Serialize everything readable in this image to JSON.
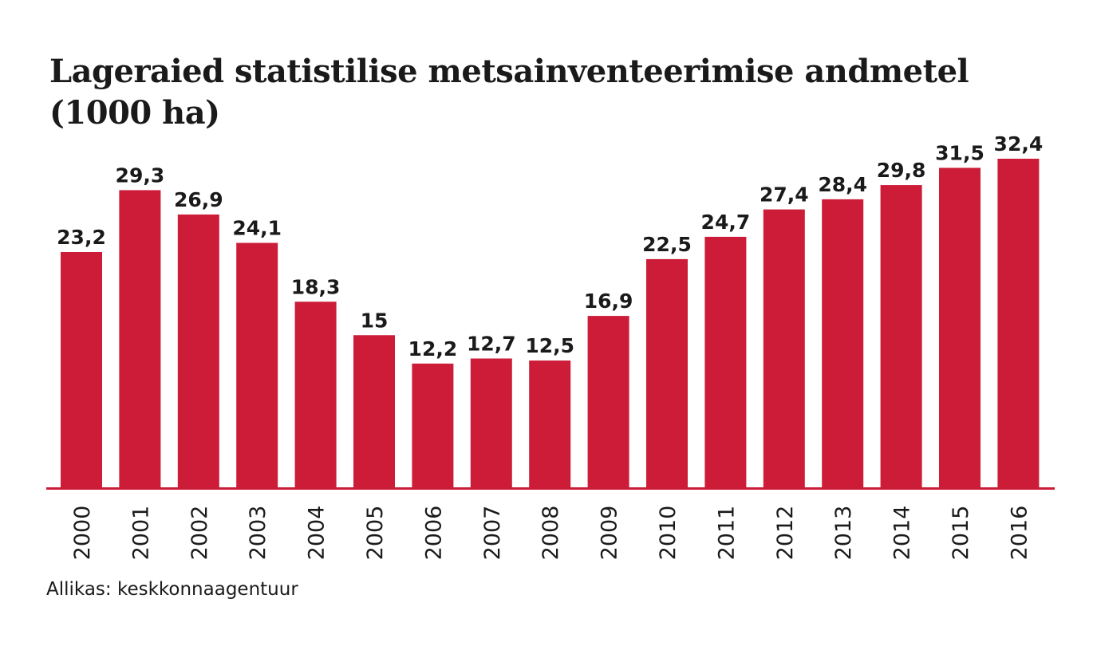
{
  "title_line1": "Lageraied statistilise metsainventeerimise andmetel",
  "title_line2": "(1000 ha)",
  "source": "Allikas: keskkonnaagentuur",
  "colors": {
    "bar": "#cc1c38",
    "text": "#1a1a1a"
  },
  "chart_data": {
    "type": "bar",
    "title": "Lageraied statistilise metsainventeerimise andmetel (1000 ha)",
    "categories": [
      "2000",
      "2001",
      "2002",
      "2003",
      "2004",
      "2005",
      "2006",
      "2007",
      "2008",
      "2009",
      "2010",
      "2011",
      "2012",
      "2013",
      "2014",
      "2015",
      "2016"
    ],
    "values": [
      23.2,
      29.3,
      26.9,
      24.1,
      18.3,
      15,
      12.2,
      12.7,
      12.5,
      16.9,
      22.5,
      24.7,
      27.4,
      28.4,
      29.8,
      31.5,
      32.4
    ],
    "value_labels": [
      "23,2",
      "29,3",
      "26,9",
      "24,1",
      "18,3",
      "15",
      "12,2",
      "12,7",
      "12,5",
      "16,9",
      "22,5",
      "24,7",
      "27,4",
      "28,4",
      "29,8",
      "31,5",
      "32,4"
    ],
    "xlabel": "",
    "ylabel": "",
    "ylim": [
      0,
      32.4
    ],
    "grid": false,
    "legend": "none"
  }
}
